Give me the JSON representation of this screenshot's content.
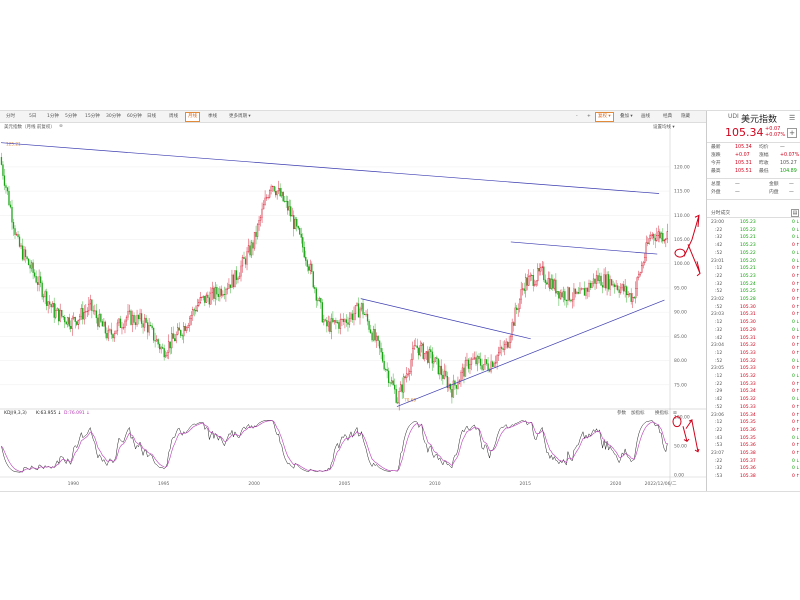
{
  "toolbar": {
    "buttons": [
      "分时",
      "5日",
      "1分钟",
      "5分钟",
      "15分钟",
      "30分钟",
      "60分钟",
      "日线",
      "周线",
      "月线",
      "季线",
      "更多周期"
    ],
    "active": "月线",
    "right_buttons": [
      "-",
      "+",
      "复权",
      "叠加",
      "画线",
      "经典",
      "隐藏"
    ],
    "right_boxed": "复权"
  },
  "subbar": {
    "title": "美元指数（月线 前复权）",
    "close": "⊗",
    "right": "设置均线 ▾"
  },
  "main_chart": {
    "y_ticks": [
      "120.00",
      "115.00",
      "110.00",
      "105.00",
      "100.00",
      "95.00",
      "90.00",
      "85.00",
      "80.00",
      "75.00"
    ],
    "x_ticks": [
      "1990",
      "1995",
      "2000",
      "2005",
      "2010",
      "2015",
      "2020",
      "2022/12/06/二"
    ],
    "hi_label": "125.21",
    "lo_label": "70.69"
  },
  "kdj": {
    "name": "KDJ(9,3,3)",
    "k": "K:63.955",
    "d": "D:76.091",
    "y_ticks": [
      "100.00",
      "50.00",
      "0.00"
    ],
    "right_links": [
      "参数",
      "加指标",
      "换指标"
    ]
  },
  "chart_data": {
    "type": "candlestick",
    "title": "美元指数",
    "series": [
      {
        "name": "美元指数 月线",
        "values": [
          [
            1986,
            122
          ],
          [
            1987,
            104
          ],
          [
            1988,
            97
          ],
          [
            1989,
            90
          ],
          [
            1990,
            88
          ],
          [
            1991,
            91
          ],
          [
            1992,
            85
          ],
          [
            1993,
            89
          ],
          [
            1994,
            88
          ],
          [
            1995,
            82
          ],
          [
            1996,
            86
          ],
          [
            1997,
            92
          ],
          [
            1998,
            94
          ],
          [
            1999,
            97
          ],
          [
            2000,
            104
          ],
          [
            2001,
            117
          ],
          [
            2002,
            111
          ],
          [
            2003,
            101
          ],
          [
            2004,
            87
          ],
          [
            2005,
            88
          ],
          [
            2006,
            91
          ],
          [
            2007,
            82
          ],
          [
            2008,
            72
          ],
          [
            2009,
            83
          ],
          [
            2010,
            80
          ],
          [
            2011,
            74
          ],
          [
            2012,
            80
          ],
          [
            2013,
            79
          ],
          [
            2014,
            83
          ],
          [
            2015,
            96
          ],
          [
            2016,
            98
          ],
          [
            2017,
            94
          ],
          [
            2018,
            93
          ],
          [
            2019,
            97
          ],
          [
            2020,
            96
          ],
          [
            2021,
            93
          ],
          [
            2022,
            106
          ]
        ]
      }
    ],
    "ylim": [
      70,
      127
    ]
  },
  "panel": {
    "code": "UDI",
    "name": "美元指数",
    "price": "105.34",
    "chg": "+0.07",
    "pct": "+0.07%",
    "plus": "+",
    "stats": [
      {
        "l1": "最新",
        "v1": "105.34",
        "c1": "red",
        "l2": "均价",
        "v2": "—",
        "c2": "gray"
      },
      {
        "l1": "涨跌",
        "v1": "+0.07",
        "c1": "red",
        "l2": "涨幅",
        "v2": "+0.07%",
        "c2": "red"
      },
      {
        "l1": "今开",
        "v1": "105.31",
        "c1": "red",
        "l2": "昨收",
        "v2": "105.27",
        "c2": "gray"
      },
      {
        "l1": "最高",
        "v1": "105.51",
        "c1": "red",
        "l2": "最低",
        "v2": "104.89",
        "c2": "green"
      }
    ],
    "stats2": [
      {
        "l1": "总量",
        "v1": "—",
        "l2": "金额",
        "v2": "—"
      },
      {
        "l1": "外盘",
        "v1": "—",
        "l2": "内盘",
        "v2": "—"
      }
    ],
    "ticks_title": "分时成交",
    "ticks": [
      {
        "t": "23:00",
        "p": "105.23",
        "c": "green",
        "v": "0",
        "a": "↓"
      },
      {
        "t": ":22",
        "p": "105.22",
        "c": "green",
        "v": "0",
        "a": "↓"
      },
      {
        "t": ":32",
        "p": "105.21",
        "c": "green",
        "v": "0",
        "a": "↓"
      },
      {
        "t": ":42",
        "p": "105.23",
        "c": "green",
        "v": "0",
        "a": "↑"
      },
      {
        "t": ":52",
        "p": "105.22",
        "c": "green",
        "v": "0",
        "a": "↓"
      },
      {
        "t": "23:01",
        "p": "105.20",
        "c": "green",
        "v": "0",
        "a": "↓"
      },
      {
        "t": ":12",
        "p": "105.21",
        "c": "green",
        "v": "0",
        "a": "↑"
      },
      {
        "t": ":22",
        "p": "105.23",
        "c": "green",
        "v": "0",
        "a": "↑"
      },
      {
        "t": ":32",
        "p": "105.24",
        "c": "green",
        "v": "0",
        "a": "↑"
      },
      {
        "t": ":52",
        "p": "105.25",
        "c": "green",
        "v": "0",
        "a": "↑"
      },
      {
        "t": "23:02",
        "p": "105.28",
        "c": "green",
        "v": "0",
        "a": "↑"
      },
      {
        "t": ":52",
        "p": "105.30",
        "c": "red",
        "v": "0",
        "a": "↑"
      },
      {
        "t": "23:03",
        "p": "105.31",
        "c": "red",
        "v": "0",
        "a": "↑"
      },
      {
        "t": ":12",
        "p": "105.30",
        "c": "red",
        "v": "0",
        "a": "↓"
      },
      {
        "t": ":32",
        "p": "105.29",
        "c": "red",
        "v": "0",
        "a": "↓"
      },
      {
        "t": ":42",
        "p": "105.31",
        "c": "red",
        "v": "0",
        "a": "↑"
      },
      {
        "t": "23:04",
        "p": "105.32",
        "c": "red",
        "v": "0",
        "a": "↑"
      },
      {
        "t": ":12",
        "p": "105.33",
        "c": "red",
        "v": "0",
        "a": "↑"
      },
      {
        "t": ":52",
        "p": "105.32",
        "c": "red",
        "v": "0",
        "a": "↓"
      },
      {
        "t": "23:05",
        "p": "105.33",
        "c": "red",
        "v": "0",
        "a": "↑"
      },
      {
        "t": ":12",
        "p": "105.32",
        "c": "red",
        "v": "0",
        "a": "↓"
      },
      {
        "t": ":22",
        "p": "105.33",
        "c": "red",
        "v": "0",
        "a": "↑"
      },
      {
        "t": ":29",
        "p": "105.34",
        "c": "red",
        "v": "0",
        "a": "↑"
      },
      {
        "t": ":42",
        "p": "105.32",
        "c": "red",
        "v": "0",
        "a": "↓"
      },
      {
        "t": ":52",
        "p": "105.33",
        "c": "red",
        "v": "0",
        "a": "↑"
      },
      {
        "t": "23:06",
        "p": "105.34",
        "c": "red",
        "v": "0",
        "a": "↑"
      },
      {
        "t": ":12",
        "p": "105.35",
        "c": "red",
        "v": "0",
        "a": "↑"
      },
      {
        "t": ":22",
        "p": "105.36",
        "c": "red",
        "v": "0",
        "a": "↑"
      },
      {
        "t": ":43",
        "p": "105.35",
        "c": "red",
        "v": "0",
        "a": "↓"
      },
      {
        "t": ":53",
        "p": "105.36",
        "c": "red",
        "v": "0",
        "a": "↑"
      },
      {
        "t": "23:07",
        "p": "105.38",
        "c": "red",
        "v": "0",
        "a": "↑"
      },
      {
        "t": ":22",
        "p": "105.37",
        "c": "red",
        "v": "0",
        "a": "↓"
      },
      {
        "t": ":32",
        "p": "105.36",
        "c": "red",
        "v": "0",
        "a": "↓"
      },
      {
        "t": ":53",
        "p": "105.38",
        "c": "red",
        "v": "0",
        "a": "↑"
      }
    ]
  }
}
